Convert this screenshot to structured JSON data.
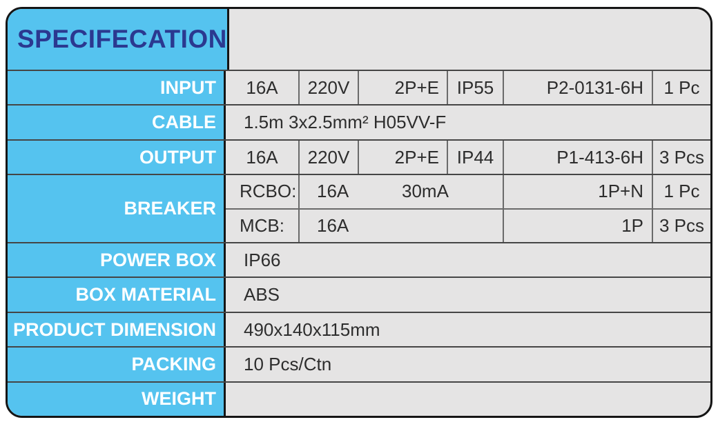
{
  "title": "SPECIFECATION",
  "colors": {
    "panel_blue": "#55c3ef",
    "title_navy": "#2b3990",
    "cell_gray": "#e5e4e4",
    "border_black": "#151515",
    "grid_gray": "#6a6a6a",
    "text_dark": "#2d2d2d",
    "label_white": "#ffffff"
  },
  "rows": {
    "input": {
      "label": "INPUT",
      "amp": "16A",
      "volt": "220V",
      "poles": "2P+E",
      "ip": "IP55",
      "model": "P2-0131-6H",
      "qty": "1 Pc"
    },
    "cable": {
      "label": "CABLE",
      "value": "1.5m 3x2.5mm² H05VV-F"
    },
    "output": {
      "label": "OUTPUT",
      "amp": "16A",
      "volt": "220V",
      "poles": "2P+E",
      "ip": "IP44",
      "model": "P1-413-6H",
      "qty": "3 Pcs"
    },
    "breaker": {
      "label": "BREAKER",
      "rcbo": {
        "name": "RCBO:",
        "amp": "16A",
        "ma": "30mA",
        "poles": "1P+N",
        "qty": "1 Pc"
      },
      "mcb": {
        "name": "MCB:",
        "amp": "16A",
        "ma": "",
        "poles": "1P",
        "qty": "3 Pcs"
      }
    },
    "power_box": {
      "label": "POWER BOX",
      "value": "IP66"
    },
    "box_material": {
      "label": "BOX MATERIAL",
      "value": "ABS"
    },
    "product_dimension": {
      "label": "PRODUCT DIMENSION",
      "value": "490x140x115mm"
    },
    "packing": {
      "label": "PACKING",
      "value": "10 Pcs/Ctn"
    },
    "weight": {
      "label": "WEIGHT",
      "value": ""
    }
  }
}
